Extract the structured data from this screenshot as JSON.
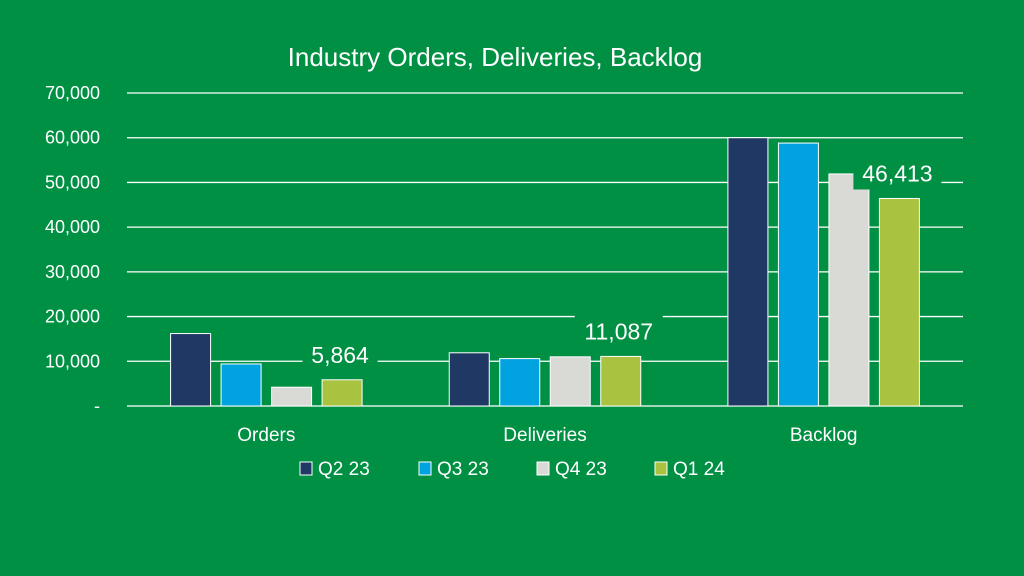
{
  "colors": {
    "background": "#009044",
    "gridline": "#ffffff",
    "text": "#ffffff",
    "label_box": "#009044"
  },
  "chart_data": {
    "type": "bar",
    "title": "Industry Orders, Deliveries, Backlog",
    "xlabel": "",
    "ylabel": "",
    "categories": [
      "Orders",
      "Deliveries",
      "Backlog"
    ],
    "ylim": [
      0,
      70000
    ],
    "yticks": [
      0,
      10000,
      20000,
      30000,
      40000,
      50000,
      60000,
      70000
    ],
    "ytick_labels": [
      "-",
      "10,000",
      "20,000",
      "30,000",
      "40,000",
      "50,000",
      "60,000",
      "70,000"
    ],
    "grid": true,
    "legend_position": "bottom",
    "series": [
      {
        "name": "Q2 23",
        "color": "#1f3864",
        "values": [
          16200,
          11900,
          60000
        ]
      },
      {
        "name": "Q3 23",
        "color": "#00a3e0",
        "values": [
          9400,
          10600,
          58800
        ]
      },
      {
        "name": "Q4 23",
        "color": "#d9d9d6",
        "values": [
          4200,
          11000,
          51900
        ]
      },
      {
        "name": "Q1 24",
        "color": "#a9c23f",
        "values": [
          5864,
          11087,
          46413
        ]
      }
    ],
    "annotations": [
      {
        "category_index": 0,
        "series_index": 3,
        "text": "5,864"
      },
      {
        "category_index": 1,
        "series_index": 3,
        "text": "11,087"
      },
      {
        "category_index": 2,
        "series_index": 3,
        "text": "46,413"
      }
    ]
  }
}
